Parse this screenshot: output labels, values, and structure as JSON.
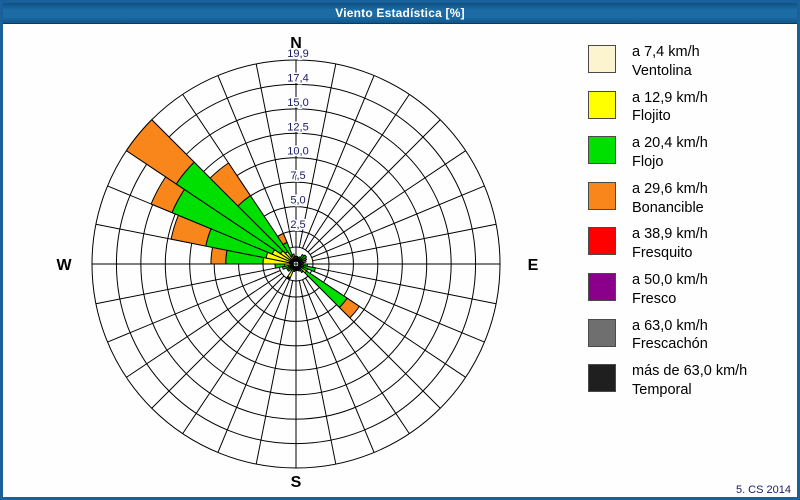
{
  "window": {
    "title": "Viento Estadística [%]",
    "footer": "5. CS 2014",
    "frame_color": "#1A619B"
  },
  "chart_data": {
    "type": "bar",
    "variant": "polar-stacked-wind-rose",
    "title": "Viento Estadística [%]",
    "units": "%",
    "sector_width_deg": 11.25,
    "radial_max": 19.9,
    "radial_tick_labels": [
      "2,5",
      "5,0",
      "7,5",
      "10,0",
      "12,5",
      "15,0",
      "17,4",
      "19,9"
    ],
    "radial_tick_values": [
      2.5,
      5.0,
      7.5,
      10.0,
      12.5,
      15.0,
      17.4,
      19.9
    ],
    "grid_on": true,
    "grid_color": "#000000",
    "tick_label_color": "#1A1A66",
    "compass_labels": {
      "n": "N",
      "e": "E",
      "s": "S",
      "w": "W"
    },
    "legend_position": "right",
    "series": [
      {
        "id": "ventolina",
        "label_speed": "a 7,4 km/h",
        "label_name": "Ventolina",
        "color": "#FCF3CF"
      },
      {
        "id": "flojito",
        "label_speed": "a 12,9 km/h",
        "label_name": "Flojito",
        "color": "#FFFF00"
      },
      {
        "id": "flojo",
        "label_speed": "a 20,4 km/h",
        "label_name": "Flojo",
        "color": "#00E000"
      },
      {
        "id": "bonancible",
        "label_speed": "a 29,6 km/h",
        "label_name": "Bonancible",
        "color": "#F9861B"
      },
      {
        "id": "fresquito",
        "label_speed": "a 38,9 km/h",
        "label_name": "Fresquito",
        "color": "#FF0000"
      },
      {
        "id": "fresco",
        "label_speed": "a 50,0 km/h",
        "label_name": "Fresco",
        "color": "#8B008B"
      },
      {
        "id": "frescachon",
        "label_speed": "a 63,0 km/h",
        "label_name": "Frescachón",
        "color": "#6F6F6F"
      },
      {
        "id": "temporal",
        "label_speed": "más de 63,0 km/h",
        "label_name": "Temporal",
        "color": "#1F1F1F"
      }
    ],
    "sectors": [
      {
        "start_deg": 0.0,
        "values": [
          0.1,
          0.1,
          0.2,
          0,
          0,
          0,
          0,
          0
        ]
      },
      {
        "start_deg": 11.25,
        "values": [
          0.1,
          0.1,
          0.1,
          0,
          0,
          0,
          0,
          0
        ]
      },
      {
        "start_deg": 22.5,
        "values": [
          0.1,
          0.1,
          0.2,
          0,
          0,
          0,
          0,
          0
        ]
      },
      {
        "start_deg": 33.75,
        "values": [
          0.1,
          0.2,
          0.4,
          0,
          0,
          0,
          0,
          0
        ]
      },
      {
        "start_deg": 45.0,
        "values": [
          0.1,
          0.2,
          0.5,
          0,
          0,
          0,
          0,
          0
        ]
      },
      {
        "start_deg": 56.25,
        "values": [
          0.1,
          0.2,
          0.4,
          0,
          0,
          0,
          0,
          0
        ]
      },
      {
        "start_deg": 67.5,
        "values": [
          0.1,
          0.2,
          0.3,
          0,
          0,
          0,
          0,
          0
        ]
      },
      {
        "start_deg": 78.75,
        "values": [
          0.1,
          0.1,
          0.2,
          0,
          0,
          0,
          0,
          0
        ]
      },
      {
        "start_deg": 90.0,
        "values": [
          0.1,
          0.2,
          0.4,
          0,
          0,
          0,
          0,
          0
        ]
      },
      {
        "start_deg": 101.25,
        "values": [
          0.1,
          0.3,
          1.0,
          0,
          0,
          0,
          0,
          0
        ]
      },
      {
        "start_deg": 112.5,
        "values": [
          0.1,
          0.2,
          0.5,
          0,
          0,
          0,
          0,
          0
        ]
      },
      {
        "start_deg": 123.75,
        "values": [
          0.2,
          0.6,
          4.6,
          1.5,
          0,
          0,
          0,
          0
        ]
      },
      {
        "start_deg": 135.0,
        "values": [
          0.1,
          0.2,
          0.3,
          0,
          0,
          0,
          0,
          0
        ]
      },
      {
        "start_deg": 146.25,
        "values": [
          0.1,
          0.1,
          0.2,
          0,
          0,
          0,
          0,
          0
        ]
      },
      {
        "start_deg": 157.5,
        "values": [
          0.1,
          0.1,
          0.1,
          0,
          0,
          0,
          0,
          0
        ]
      },
      {
        "start_deg": 168.75,
        "values": [
          0.1,
          0.1,
          0.1,
          0,
          0,
          0,
          0,
          0
        ]
      },
      {
        "start_deg": 180.0,
        "values": [
          0.1,
          0.1,
          0.1,
          0,
          0,
          0,
          0,
          0
        ]
      },
      {
        "start_deg": 191.25,
        "values": [
          0.1,
          0.1,
          0.2,
          0,
          0,
          0,
          0,
          0
        ]
      },
      {
        "start_deg": 202.5,
        "values": [
          0.2,
          0.8,
          0.1,
          0,
          0,
          0,
          0,
          0
        ]
      },
      {
        "start_deg": 213.75,
        "values": [
          0.1,
          0.1,
          0.2,
          0,
          0,
          0,
          0,
          0
        ]
      },
      {
        "start_deg": 225.0,
        "values": [
          0.1,
          0.2,
          0.3,
          0,
          0,
          0,
          0,
          0
        ]
      },
      {
        "start_deg": 236.25,
        "values": [
          0.1,
          0.2,
          0.3,
          0,
          0,
          0,
          0,
          0
        ]
      },
      {
        "start_deg": 247.5,
        "values": [
          0.1,
          0.3,
          0.5,
          0,
          0,
          0,
          0,
          0
        ]
      },
      {
        "start_deg": 258.75,
        "values": [
          0.2,
          0.5,
          0.8,
          0,
          0,
          0,
          0,
          0
        ]
      },
      {
        "start_deg": 270.0,
        "values": [
          0.3,
          2.2,
          3.8,
          1.5,
          0,
          0,
          0,
          0
        ]
      },
      {
        "start_deg": 281.25,
        "values": [
          0.3,
          2.0,
          6.2,
          3.6,
          0,
          0,
          0,
          0
        ]
      },
      {
        "start_deg": 292.5,
        "values": [
          0.3,
          1.6,
          10.9,
          2.3,
          0,
          0,
          0,
          0
        ]
      },
      {
        "start_deg": 303.75,
        "values": [
          0.3,
          1.0,
          12.5,
          6.1,
          0,
          0,
          0,
          0
        ]
      },
      {
        "start_deg": 315.0,
        "values": [
          0.2,
          0.8,
          6.5,
          4.0,
          0,
          0,
          0,
          0
        ]
      },
      {
        "start_deg": 326.25,
        "values": [
          0.1,
          0.4,
          1.2,
          0.8,
          0,
          0,
          0,
          0
        ]
      },
      {
        "start_deg": 337.5,
        "values": [
          0.1,
          0.2,
          0.3,
          0,
          0,
          0,
          0,
          0
        ]
      },
      {
        "start_deg": 348.75,
        "values": [
          0.1,
          0.1,
          0.2,
          0,
          0,
          0,
          0,
          0
        ]
      }
    ]
  }
}
